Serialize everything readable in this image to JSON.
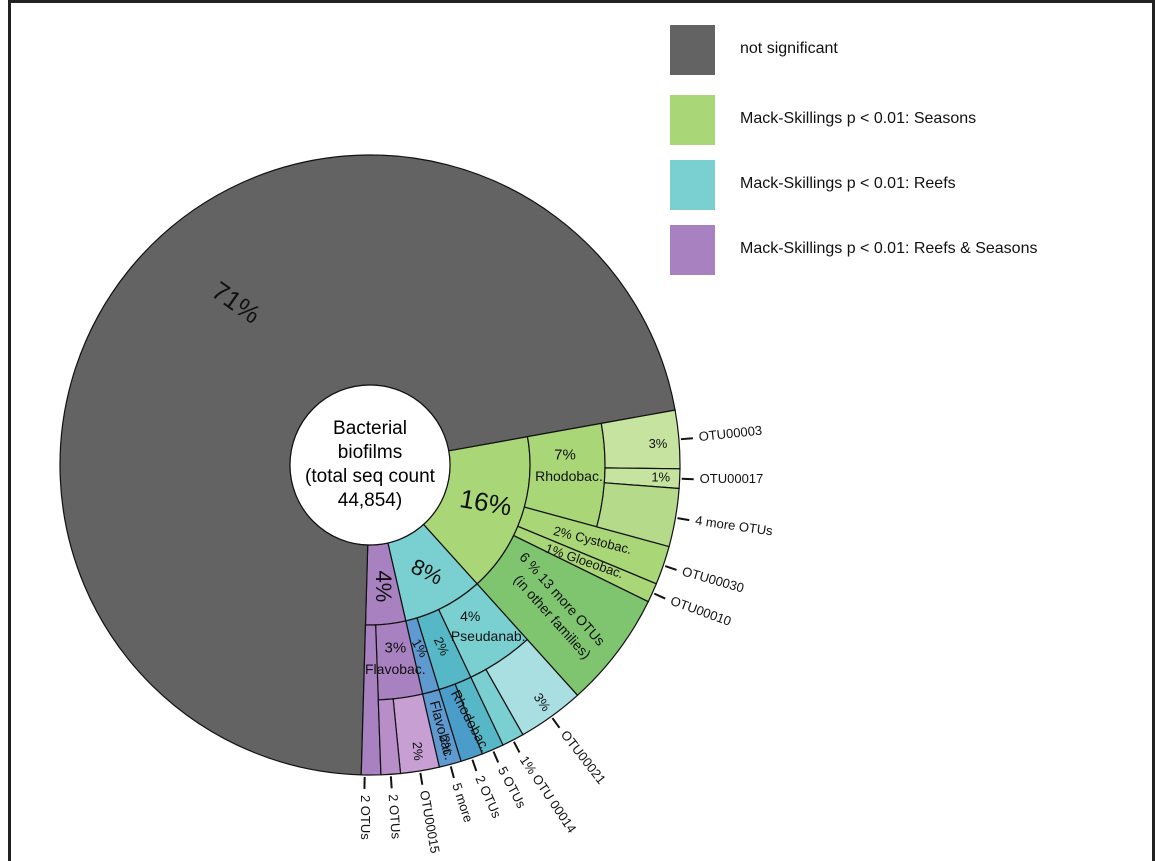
{
  "chart_data": {
    "type": "sunburst",
    "center_label": [
      "Bacterial",
      "biofilms",
      "(total seq count",
      "44,854)"
    ],
    "legend": [
      {
        "label": "not significant",
        "color": "#636363"
      },
      {
        "label": "Mack-Skillings p < 0.01: Seasons",
        "color": "#a9d676"
      },
      {
        "label": "Mack-Skillings p < 0.01: Reefs",
        "color": "#7acfd0"
      },
      {
        "label": "Mack-Skillings p < 0.01: Reefs & Seasons",
        "color": "#a881c0"
      }
    ],
    "inner_ring": [
      {
        "group": "not significant",
        "percent": 71,
        "label": "71%",
        "color": "#636363"
      },
      {
        "group": "Seasons",
        "percent": 16,
        "label": "16%",
        "color": "#a9d676"
      },
      {
        "group": "Reefs",
        "percent": 8,
        "label": "8%",
        "color": "#7acfd0"
      },
      {
        "group": "Reefs & Seasons",
        "percent": 4,
        "label": "4%",
        "color": "#a881c0"
      }
    ],
    "middle_ring": [
      {
        "group": "Seasons",
        "family": "Rhodobac.",
        "percent": 7,
        "label": "7%",
        "color": "#a9d676"
      },
      {
        "group": "Seasons",
        "family": "Cystobac.",
        "percent": 2,
        "label": "2% Cystobac.",
        "color": "#a9d676"
      },
      {
        "group": "Seasons",
        "family": "Gloeobac.",
        "percent": 1,
        "label": "1% Gloeobac.",
        "color": "#a9d676"
      },
      {
        "group": "Seasons",
        "family": "13 more OTUs (in other families)",
        "percent": 6,
        "label": "6 % 13 more OTUs (in other families)",
        "color": "#7fc570"
      },
      {
        "group": "Reefs",
        "family": "Pseudanab.",
        "percent": 4,
        "label": "4%",
        "color": "#7acfd0"
      },
      {
        "group": "Reefs",
        "family": "Rhodobac.",
        "percent": 2,
        "label": "2%",
        "color": "#56b8c6"
      },
      {
        "group": "Reefs",
        "family": "Flavobac.",
        "percent": 1,
        "label": "1%",
        "color": "#5e99cf"
      },
      {
        "group": "Reefs & Seasons",
        "family": "Flavobac.",
        "percent": 3,
        "label": "3%",
        "color": "#a881c0"
      }
    ],
    "outer_ring": [
      {
        "name": "OTU00003",
        "percent": 3,
        "label": "3%"
      },
      {
        "name": "OTU00017",
        "percent": 1,
        "label": "1%"
      },
      {
        "name": "4 more OTUs",
        "percent": 3,
        "label": ""
      },
      {
        "name": "OTU00030",
        "percent": 2,
        "label": ""
      },
      {
        "name": "OTU00010",
        "percent": 1,
        "label": ""
      },
      {
        "name": "OTU00021",
        "percent": 3,
        "label": "3%"
      },
      {
        "name": "OTU 00014",
        "percent": 1,
        "label": "1%"
      },
      {
        "name": "5 OTUs",
        "percent": 1,
        "label": ""
      },
      {
        "name": "2 OTUs",
        "percent": 1,
        "label": ""
      },
      {
        "name": "5 more",
        "percent": 2,
        "label": "2%"
      },
      {
        "name": "OTU00015",
        "percent": 2,
        "label": "2%"
      },
      {
        "name": "2 OTUs",
        "percent": 1,
        "label": ""
      },
      {
        "name": "2 OTUs",
        "percent": 1,
        "label": ""
      }
    ],
    "family_labels": [
      "Rhodobac.",
      "Pseudanab.",
      "Rhodobac.",
      "Flavobac.",
      "Flavobac."
    ]
  }
}
